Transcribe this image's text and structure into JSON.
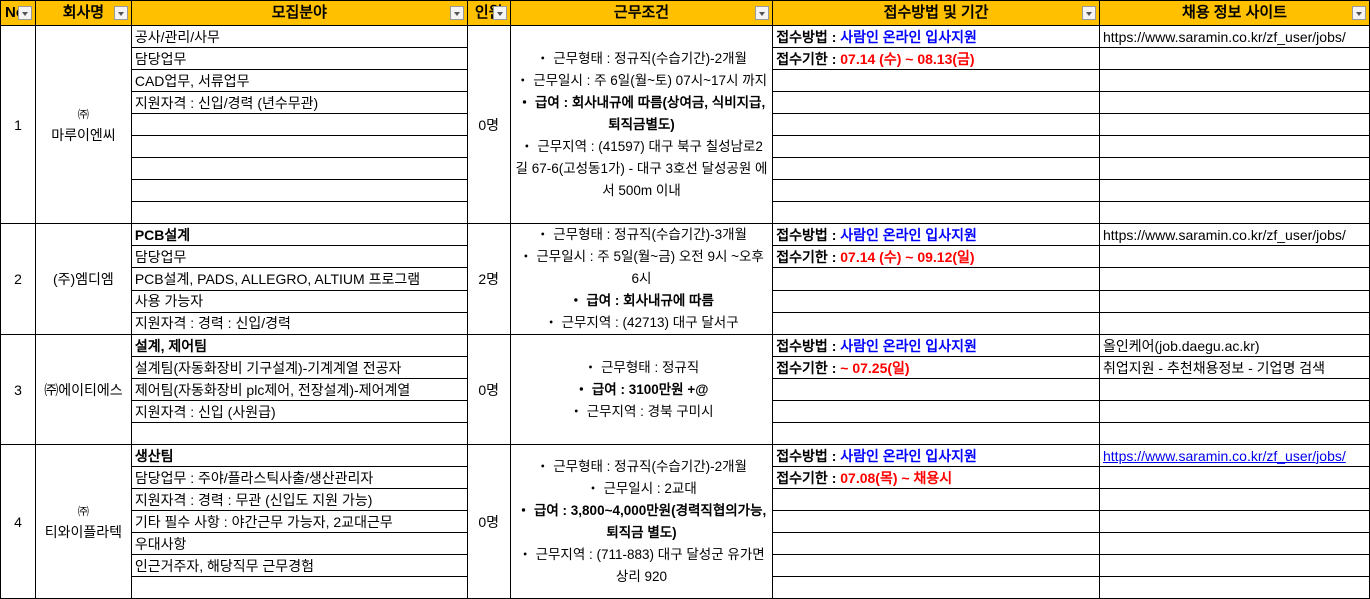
{
  "headers": [
    "No",
    "회사명",
    "모집분야",
    "인원",
    "근무조건",
    "접수방법 및 기간",
    "채용 정보 사이트"
  ],
  "colors": {
    "header_bg": "#FFC000",
    "method_value": "#0000FF",
    "deadline_value": "#FF0000"
  },
  "rows": [
    {
      "no": "1",
      "company": "㈜\n마루이엔씨",
      "count": "0명",
      "subrows": 9,
      "fields": [
        {
          "text": "공사/관리/사무",
          "bold": false
        },
        {
          "text": "담당업무",
          "bold": false
        },
        {
          "text": "CAD업무, 서류업무",
          "bold": false
        },
        {
          "text": "지원자격 : 신입/경력 (년수무관)",
          "bold": false
        }
      ],
      "conditions": [
        {
          "text": "・ 근무형태 : 정규직(수습기간)-2개월",
          "bold": false
        },
        {
          "text": "・ 근무일시 : 주 6일(월~토) 07시~17시 까지",
          "bold": false
        },
        {
          "text": "・ 급여 : 회사내규에 따름(상여금, 식비지급, 퇴직금별도)",
          "bold": true
        },
        {
          "text": "・ 근무지역 : (41597) 대구 북구 칠성남로2길 67-6(고성동1가) - 대구 3호선 달성공원 에서 500m 이내",
          "bold": false
        }
      ],
      "method_label": "접수방법 : ",
      "method_value": "사람인 온라인 입사지원",
      "deadline_label": "접수기한 : ",
      "deadline_value": " 07.14 (수) ~ 08.13(금)",
      "sites": [
        {
          "text": "https://www.saramin.co.kr/zf_user/jobs/",
          "link": false
        }
      ]
    },
    {
      "no": "2",
      "company": "(주)엠디엠",
      "count": "2명",
      "subrows": 5,
      "fields": [
        {
          "text": "PCB설계",
          "bold": true
        },
        {
          "text": "담당업무",
          "bold": false
        },
        {
          "text": "PCB설계, PADS, ALLEGRO, ALTIUM 프로그램",
          "bold": false
        },
        {
          "text": "사용 가능자",
          "bold": false
        },
        {
          "text": "지원자격 : 경력 : 신입/경력",
          "bold": false
        }
      ],
      "conditions": [
        {
          "text": "・ 근무형태 : 정규직(수습기간)-3개월",
          "bold": false
        },
        {
          "text": "・ 근무일시 : 주 5일(월~금) 오전 9시 ~오후 6시",
          "bold": false
        },
        {
          "text": "・ 급여 : 회사내규에 따름",
          "bold": true
        },
        {
          "text": "・ 근무지역 : (42713) 대구 달서구",
          "bold": false
        }
      ],
      "method_label": "접수방법 : ",
      "method_value": "사람인 온라인 입사지원",
      "deadline_label": "접수기한 : ",
      "deadline_value": " 07.14 (수) ~ 09.12(일)",
      "sites": [
        {
          "text": "https://www.saramin.co.kr/zf_user/jobs/",
          "link": false
        }
      ]
    },
    {
      "no": "3",
      "company": "㈜에이티에스",
      "count": "0명",
      "subrows": 5,
      "fields": [
        {
          "text": "설계, 제어팀",
          "bold": true
        },
        {
          "text": "설계팀(자동화장비 기구설계)-기계계열 전공자",
          "bold": false
        },
        {
          "text": "제어팀(자동화장비 plc제어, 전장설계)-제어계열",
          "bold": false
        },
        {
          "text": "지원자격 : 신입 (사원급)",
          "bold": false
        }
      ],
      "conditions": [
        {
          "text": "・ 근무형태 : 정규직",
          "bold": false
        },
        {
          "text": "・ 급여 : 3100만원 +@",
          "bold": true
        },
        {
          "text": "・ 근무지역 : 경북 구미시",
          "bold": false
        }
      ],
      "method_label": "접수방법 : ",
      "method_value": "사람인 온라인 입사지원",
      "deadline_label": "접수기한 : ",
      "deadline_value": "~ 07.25(일)",
      "sites": [
        {
          "text": "올인케어(job.daegu.ac.kr)",
          "link": false
        },
        {
          "text": "취업지원 - 추천채용정보 - 기업명 검색",
          "link": false
        }
      ]
    },
    {
      "no": "4",
      "company": "㈜\n티와이플라텍",
      "count": "0명",
      "subrows": 7,
      "fields": [
        {
          "text": "생산팀",
          "bold": true
        },
        {
          "text": "담당업무 : 주야/플라스틱사출/생산관리자",
          "bold": false
        },
        {
          "text": "지원자격 : 경력 : 무관 (신입도 지원 가능)",
          "bold": false
        },
        {
          "text": "기타 필수 사항 : 야간근무 가능자, 2교대근무",
          "bold": false
        },
        {
          "text": "우대사항",
          "bold": false
        },
        {
          "text": "인근거주자, 해당직무 근무경험",
          "bold": false
        }
      ],
      "conditions": [
        {
          "text": "・ 근무형태 : 정규직(수습기간)-2개월",
          "bold": false
        },
        {
          "text": "・ 근무일시 : 2교대",
          "bold": false
        },
        {
          "text": "・ 급여 : 3,800~4,000만원(경력직협의가능, 퇴직금 별도)",
          "bold": true
        },
        {
          "text": "・ 근무지역 : (711-883) 대구 달성군 유가면 상리 920",
          "bold": false
        }
      ],
      "method_label": "접수방법 : ",
      "method_value": "사람인 온라인 입사지원",
      "deadline_label": "접수기한 : ",
      "deadline_value": "07.08(목) ~ 채용시",
      "sites": [
        {
          "text": "https://www.saramin.co.kr/zf_user/jobs/",
          "link": true
        }
      ]
    }
  ]
}
